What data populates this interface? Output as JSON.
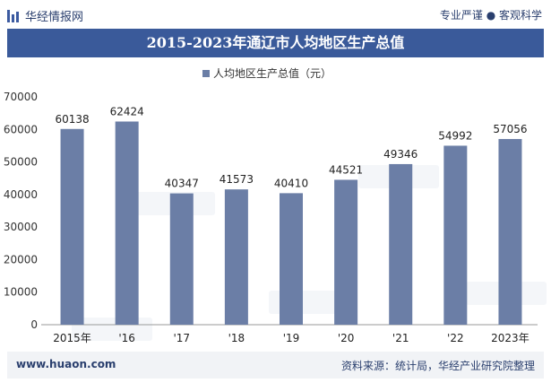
{
  "header": {
    "brand": "华经情报网",
    "slogan": "专业严谨 ● 客观科学"
  },
  "chart_data": {
    "type": "bar",
    "title": "2015-2023年通辽市人均地区生产总值",
    "legend": "人均地区生产总值（元）",
    "categories": [
      "2015年",
      "'16",
      "'17",
      "'18",
      "'19",
      "'20",
      "'21",
      "'22",
      "2023年"
    ],
    "series": [
      {
        "name": "人均地区生产总值（元）",
        "values": [
          60138,
          62424,
          40347,
          41573,
          40410,
          44521,
          49346,
          54992,
          57056
        ]
      }
    ],
    "ylim": [
      0,
      70000
    ],
    "yticks": [
      0,
      10000,
      20000,
      30000,
      40000,
      50000,
      60000,
      70000
    ],
    "grid": false,
    "bar_color": "#6b7ea6",
    "legend_position": "top-center"
  },
  "footer": {
    "site": "www.huaon.com",
    "source": "资料来源：统计局，华经产业研究院整理"
  }
}
